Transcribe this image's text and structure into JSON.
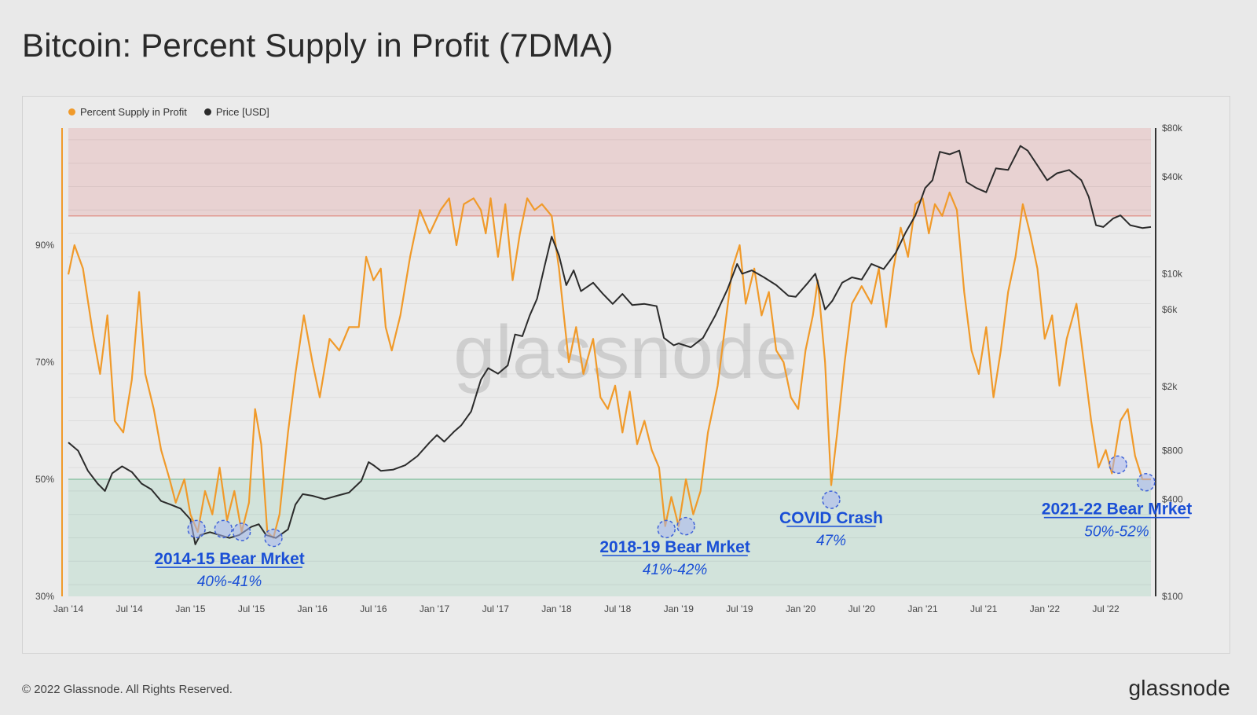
{
  "header": {
    "title": "Bitcoin: Percent Supply in Profit (7DMA)"
  },
  "legend": {
    "items": [
      {
        "label": "Percent Supply in Profit",
        "color": "#f09a2a"
      },
      {
        "label": "Price [USD]",
        "color": "#2b2b2b"
      }
    ]
  },
  "watermark": "glassnode",
  "footer": {
    "copyright": "© 2022 Glassnode. All Rights Reserved.",
    "logo": "glassnode"
  },
  "colors": {
    "orange": "#f09a2a",
    "price": "#2b2b2b",
    "annotation": "#1a4fd6",
    "upper_zone": "#e8d2d2",
    "lower_zone": "#d2e3db"
  },
  "chart_data": {
    "type": "line",
    "title": "Bitcoin: Percent Supply in Profit (7DMA)",
    "x_ticks": [
      "Jan '14",
      "Jul '14",
      "Jan '15",
      "Jul '15",
      "Jan '16",
      "Jul '16",
      "Jan '17",
      "Jul '17",
      "Jan '18",
      "Jul '18",
      "Jan '19",
      "Jul '19",
      "Jan '20",
      "Jul '20",
      "Jan '21",
      "Jul '21",
      "Jan '22",
      "Jul '22"
    ],
    "x_range": [
      2014.0,
      2022.87
    ],
    "left_axis": {
      "ticks": [
        "90%",
        "70%",
        "50%",
        "30%"
      ],
      "values": [
        90,
        70,
        50,
        30
      ],
      "range": [
        30,
        110
      ]
    },
    "right_axis": {
      "ticks": [
        "$80k",
        "$40k",
        "$10k",
        "$6k",
        "$2k",
        "$800",
        "$400",
        "$100"
      ],
      "values": [
        80000,
        40000,
        10000,
        6000,
        2000,
        800,
        400,
        100
      ],
      "range": [
        100,
        80000
      ],
      "scale": "log"
    },
    "bands": [
      {
        "name": "upper-zone",
        "from": 95,
        "to": 110
      },
      {
        "name": "lower-zone",
        "from": 30,
        "to": 50
      }
    ],
    "series": [
      {
        "name": "Percent Supply in Profit",
        "axis": "left",
        "points": [
          [
            2014.0,
            85
          ],
          [
            2014.05,
            90
          ],
          [
            2014.12,
            86
          ],
          [
            2014.2,
            75
          ],
          [
            2014.26,
            68
          ],
          [
            2014.32,
            78
          ],
          [
            2014.38,
            60
          ],
          [
            2014.45,
            58
          ],
          [
            2014.52,
            67
          ],
          [
            2014.58,
            82
          ],
          [
            2014.63,
            68
          ],
          [
            2014.7,
            62
          ],
          [
            2014.76,
            55
          ],
          [
            2014.83,
            50
          ],
          [
            2014.88,
            46
          ],
          [
            2014.95,
            50
          ],
          [
            2015.0,
            44
          ],
          [
            2015.06,
            41
          ],
          [
            2015.12,
            48
          ],
          [
            2015.18,
            44
          ],
          [
            2015.24,
            52
          ],
          [
            2015.3,
            43
          ],
          [
            2015.36,
            48
          ],
          [
            2015.42,
            41
          ],
          [
            2015.48,
            46
          ],
          [
            2015.53,
            62
          ],
          [
            2015.58,
            56
          ],
          [
            2015.63,
            41
          ],
          [
            2015.68,
            40
          ],
          [
            2015.73,
            44
          ],
          [
            2015.8,
            58
          ],
          [
            2015.86,
            68
          ],
          [
            2015.93,
            78
          ],
          [
            2016.0,
            70
          ],
          [
            2016.06,
            64
          ],
          [
            2016.14,
            74
          ],
          [
            2016.22,
            72
          ],
          [
            2016.3,
            76
          ],
          [
            2016.38,
            76
          ],
          [
            2016.44,
            88
          ],
          [
            2016.5,
            84
          ],
          [
            2016.56,
            86
          ],
          [
            2016.6,
            76
          ],
          [
            2016.65,
            72
          ],
          [
            2016.72,
            78
          ],
          [
            2016.8,
            88
          ],
          [
            2016.88,
            96
          ],
          [
            2016.96,
            92
          ],
          [
            2017.05,
            96
          ],
          [
            2017.12,
            98
          ],
          [
            2017.18,
            90
          ],
          [
            2017.24,
            97
          ],
          [
            2017.32,
            98
          ],
          [
            2017.38,
            96
          ],
          [
            2017.42,
            92
          ],
          [
            2017.46,
            98
          ],
          [
            2017.52,
            88
          ],
          [
            2017.58,
            97
          ],
          [
            2017.64,
            84
          ],
          [
            2017.7,
            92
          ],
          [
            2017.76,
            98
          ],
          [
            2017.82,
            96
          ],
          [
            2017.88,
            97
          ],
          [
            2017.96,
            95
          ],
          [
            2018.02,
            86
          ],
          [
            2018.06,
            78
          ],
          [
            2018.1,
            70
          ],
          [
            2018.16,
            76
          ],
          [
            2018.22,
            68
          ],
          [
            2018.3,
            74
          ],
          [
            2018.36,
            64
          ],
          [
            2018.42,
            62
          ],
          [
            2018.48,
            66
          ],
          [
            2018.54,
            58
          ],
          [
            2018.6,
            65
          ],
          [
            2018.66,
            56
          ],
          [
            2018.72,
            60
          ],
          [
            2018.78,
            55
          ],
          [
            2018.84,
            52
          ],
          [
            2018.89,
            42
          ],
          [
            2018.94,
            47
          ],
          [
            2019.0,
            42
          ],
          [
            2019.06,
            50
          ],
          [
            2019.12,
            44
          ],
          [
            2019.18,
            48
          ],
          [
            2019.24,
            58
          ],
          [
            2019.32,
            66
          ],
          [
            2019.38,
            76
          ],
          [
            2019.44,
            86
          ],
          [
            2019.5,
            90
          ],
          [
            2019.55,
            80
          ],
          [
            2019.62,
            86
          ],
          [
            2019.68,
            78
          ],
          [
            2019.74,
            82
          ],
          [
            2019.8,
            72
          ],
          [
            2019.86,
            70
          ],
          [
            2019.92,
            64
          ],
          [
            2019.98,
            62
          ],
          [
            2020.04,
            72
          ],
          [
            2020.1,
            78
          ],
          [
            2020.14,
            84
          ],
          [
            2020.2,
            70
          ],
          [
            2020.25,
            49
          ],
          [
            2020.3,
            58
          ],
          [
            2020.36,
            70
          ],
          [
            2020.42,
            80
          ],
          [
            2020.5,
            83
          ],
          [
            2020.58,
            80
          ],
          [
            2020.64,
            86
          ],
          [
            2020.7,
            76
          ],
          [
            2020.76,
            86
          ],
          [
            2020.82,
            93
          ],
          [
            2020.88,
            88
          ],
          [
            2020.94,
            97
          ],
          [
            2021.0,
            98
          ],
          [
            2021.05,
            92
          ],
          [
            2021.1,
            97
          ],
          [
            2021.16,
            95
          ],
          [
            2021.22,
            99
          ],
          [
            2021.28,
            96
          ],
          [
            2021.34,
            82
          ],
          [
            2021.4,
            72
          ],
          [
            2021.46,
            68
          ],
          [
            2021.52,
            76
          ],
          [
            2021.58,
            64
          ],
          [
            2021.64,
            72
          ],
          [
            2021.7,
            82
          ],
          [
            2021.76,
            88
          ],
          [
            2021.82,
            97
          ],
          [
            2021.88,
            92
          ],
          [
            2021.94,
            86
          ],
          [
            2022.0,
            74
          ],
          [
            2022.06,
            78
          ],
          [
            2022.12,
            66
          ],
          [
            2022.18,
            74
          ],
          [
            2022.26,
            80
          ],
          [
            2022.32,
            70
          ],
          [
            2022.38,
            60
          ],
          [
            2022.44,
            52
          ],
          [
            2022.5,
            55
          ],
          [
            2022.55,
            51
          ],
          [
            2022.62,
            60
          ],
          [
            2022.68,
            62
          ],
          [
            2022.74,
            54
          ],
          [
            2022.8,
            50
          ],
          [
            2022.87,
            50
          ]
        ]
      },
      {
        "name": "Price [USD]",
        "axis": "right",
        "points": [
          [
            2014.0,
            900
          ],
          [
            2014.08,
            800
          ],
          [
            2014.16,
            600
          ],
          [
            2014.24,
            500
          ],
          [
            2014.3,
            450
          ],
          [
            2014.36,
            580
          ],
          [
            2014.44,
            640
          ],
          [
            2014.52,
            590
          ],
          [
            2014.6,
            500
          ],
          [
            2014.68,
            460
          ],
          [
            2014.76,
            390
          ],
          [
            2014.84,
            370
          ],
          [
            2014.92,
            350
          ],
          [
            2015.0,
            300
          ],
          [
            2015.04,
            210
          ],
          [
            2015.08,
            240
          ],
          [
            2015.16,
            250
          ],
          [
            2015.24,
            240
          ],
          [
            2015.32,
            230
          ],
          [
            2015.4,
            240
          ],
          [
            2015.5,
            270
          ],
          [
            2015.56,
            280
          ],
          [
            2015.62,
            240
          ],
          [
            2015.7,
            230
          ],
          [
            2015.8,
            260
          ],
          [
            2015.86,
            370
          ],
          [
            2015.92,
            430
          ],
          [
            2016.0,
            420
          ],
          [
            2016.1,
            400
          ],
          [
            2016.2,
            420
          ],
          [
            2016.3,
            440
          ],
          [
            2016.4,
            520
          ],
          [
            2016.46,
            680
          ],
          [
            2016.5,
            650
          ],
          [
            2016.56,
            600
          ],
          [
            2016.66,
            610
          ],
          [
            2016.76,
            650
          ],
          [
            2016.86,
            740
          ],
          [
            2016.96,
            900
          ],
          [
            2017.02,
            1000
          ],
          [
            2017.08,
            910
          ],
          [
            2017.16,
            1050
          ],
          [
            2017.22,
            1150
          ],
          [
            2017.3,
            1400
          ],
          [
            2017.38,
            2200
          ],
          [
            2017.44,
            2600
          ],
          [
            2017.52,
            2400
          ],
          [
            2017.6,
            2700
          ],
          [
            2017.66,
            4200
          ],
          [
            2017.72,
            4100
          ],
          [
            2017.78,
            5500
          ],
          [
            2017.84,
            7000
          ],
          [
            2017.9,
            11000
          ],
          [
            2017.96,
            17000
          ],
          [
            2018.02,
            13000
          ],
          [
            2018.08,
            8500
          ],
          [
            2018.14,
            10500
          ],
          [
            2018.2,
            7800
          ],
          [
            2018.3,
            8800
          ],
          [
            2018.38,
            7500
          ],
          [
            2018.46,
            6500
          ],
          [
            2018.54,
            7500
          ],
          [
            2018.62,
            6400
          ],
          [
            2018.72,
            6500
          ],
          [
            2018.82,
            6300
          ],
          [
            2018.88,
            4000
          ],
          [
            2018.96,
            3600
          ],
          [
            2019.0,
            3700
          ],
          [
            2019.1,
            3500
          ],
          [
            2019.2,
            4000
          ],
          [
            2019.3,
            5500
          ],
          [
            2019.4,
            8000
          ],
          [
            2019.48,
            11500
          ],
          [
            2019.52,
            10000
          ],
          [
            2019.6,
            10500
          ],
          [
            2019.7,
            9500
          ],
          [
            2019.8,
            8500
          ],
          [
            2019.9,
            7300
          ],
          [
            2019.96,
            7200
          ],
          [
            2020.06,
            8800
          ],
          [
            2020.12,
            10000
          ],
          [
            2020.2,
            6000
          ],
          [
            2020.26,
            6800
          ],
          [
            2020.34,
            8800
          ],
          [
            2020.42,
            9500
          ],
          [
            2020.5,
            9200
          ],
          [
            2020.58,
            11500
          ],
          [
            2020.68,
            10700
          ],
          [
            2020.78,
            13500
          ],
          [
            2020.86,
            18000
          ],
          [
            2020.94,
            23000
          ],
          [
            2021.02,
            34000
          ],
          [
            2021.08,
            38000
          ],
          [
            2021.14,
            57000
          ],
          [
            2021.22,
            55000
          ],
          [
            2021.3,
            58000
          ],
          [
            2021.36,
            37000
          ],
          [
            2021.44,
            34000
          ],
          [
            2021.52,
            32000
          ],
          [
            2021.6,
            45000
          ],
          [
            2021.7,
            44000
          ],
          [
            2021.8,
            62000
          ],
          [
            2021.86,
            58000
          ],
          [
            2021.94,
            47000
          ],
          [
            2022.02,
            38000
          ],
          [
            2022.1,
            42000
          ],
          [
            2022.2,
            44000
          ],
          [
            2022.3,
            38000
          ],
          [
            2022.36,
            30000
          ],
          [
            2022.42,
            20000
          ],
          [
            2022.48,
            19500
          ],
          [
            2022.56,
            22000
          ],
          [
            2022.62,
            23000
          ],
          [
            2022.7,
            20000
          ],
          [
            2022.8,
            19200
          ],
          [
            2022.87,
            19500
          ]
        ]
      }
    ],
    "annotations": [
      {
        "label": "2014-15 Bear Mrket",
        "sub": "40%-41%",
        "x": 2015.32,
        "y": 35.5,
        "circles": [
          [
            2015.05,
            41.5
          ],
          [
            2015.27,
            41.5
          ],
          [
            2015.42,
            41
          ],
          [
            2015.68,
            40
          ]
        ]
      },
      {
        "label": "2018-19 Bear Mrket",
        "sub": "41%-42%",
        "x": 2018.97,
        "y": 37.5,
        "circles": [
          [
            2018.9,
            41.5
          ],
          [
            2019.06,
            42
          ]
        ]
      },
      {
        "label": "COVID Crash",
        "sub": "47%",
        "x": 2020.25,
        "y": 42.5,
        "circles": [
          [
            2020.25,
            46.5
          ]
        ]
      },
      {
        "label": "2021-22 Bear Mrket",
        "sub": "50%-52%",
        "x": 2022.59,
        "y": 44,
        "circles": [
          [
            2022.6,
            52.5
          ],
          [
            2022.83,
            49.5
          ]
        ]
      }
    ]
  }
}
